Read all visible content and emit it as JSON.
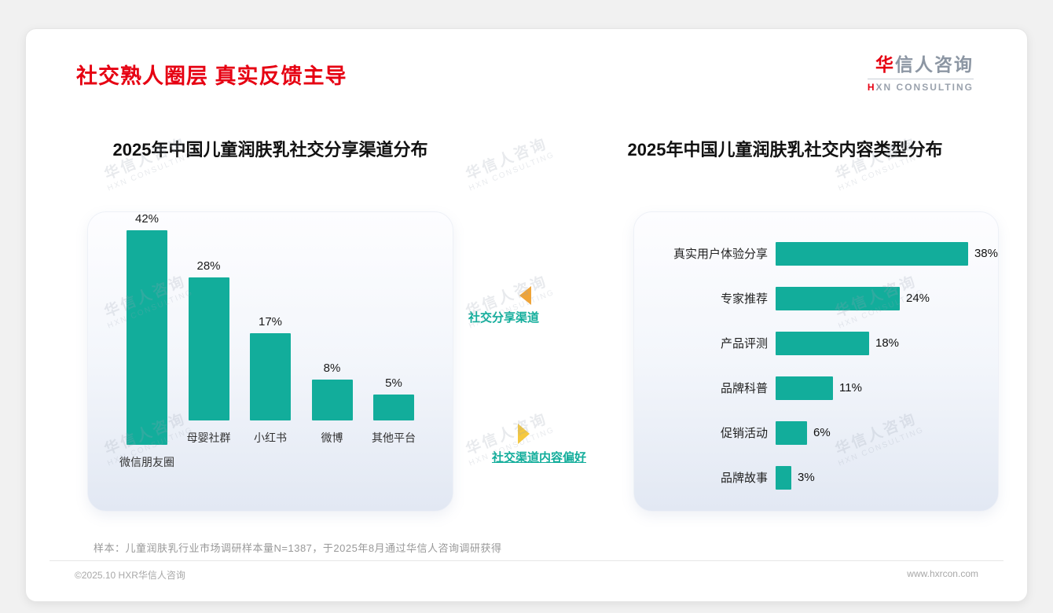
{
  "header": {
    "title": "社交熟人圈层 真实反馈主导"
  },
  "logo": {
    "zh_accent": "华",
    "zh_rest": "信人咨询",
    "en_accent": "H",
    "en_rest": "XN CONSULTING"
  },
  "watermark": {
    "line1": "华信人咨询",
    "line2": "HXN CONSULTING"
  },
  "middle": {
    "top_label": "社交分享渠道",
    "bottom_label": "社交渠道内容偏好"
  },
  "chart_data": [
    {
      "type": "bar",
      "title": "2025年中国儿童润肤乳社交分享渠道分布",
      "categories": [
        "微信朋友圈",
        "母婴社群",
        "小红书",
        "微博",
        "其他平台"
      ],
      "values": [
        42,
        28,
        17,
        8,
        5
      ],
      "unit": "%",
      "ylim": [
        0,
        45
      ],
      "grid": false,
      "legend": "none",
      "bar_color": "#12AD9B"
    },
    {
      "type": "bar",
      "orientation": "horizontal",
      "title": "2025年中国儿童润肤乳社交内容类型分布",
      "categories": [
        "真实用户体验分享",
        "专家推荐",
        "产品评测",
        "品牌科普",
        "促销活动",
        "品牌故事"
      ],
      "values": [
        38,
        24,
        18,
        11,
        6,
        3
      ],
      "unit": "%",
      "xlim": [
        0,
        40
      ],
      "grid": false,
      "legend": "none",
      "bar_color": "#12AD9B"
    }
  ],
  "footnote": {
    "text": "样本：儿童润肤乳行业市场调研样本量N=1387，于2025年8月通过华信人咨询调研获得"
  },
  "footer": {
    "left": "©2025.10 HXR华信人咨询",
    "right": "www.hxrcon.com"
  },
  "colors": {
    "accent": "#12AD9B",
    "title_red": "#E60012",
    "arrow_top": "#F0A437",
    "arrow_bottom": "#F6C93F",
    "watermark": "#9AA3B2"
  }
}
